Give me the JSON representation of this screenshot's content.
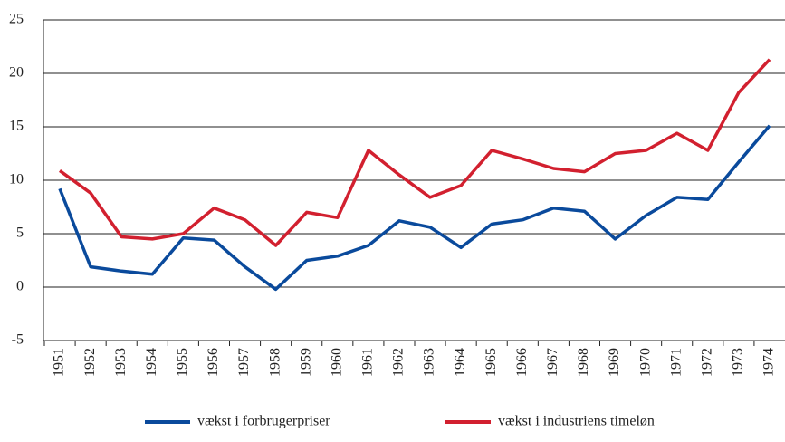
{
  "chart_data": {
    "type": "line",
    "categories": [
      "1951",
      "1952",
      "1953",
      "1954",
      "1955",
      "1956",
      "1957",
      "1958",
      "1959",
      "1960",
      "1961",
      "1962",
      "1963",
      "1964",
      "1965",
      "1966",
      "1967",
      "1968",
      "1969",
      "1970",
      "1971",
      "1972",
      "1973",
      "1974"
    ],
    "series": [
      {
        "name": "vækst i forbrugerpriser",
        "color": "#0a4a9c",
        "values": [
          9.2,
          1.9,
          1.5,
          1.2,
          4.6,
          4.4,
          1.9,
          -0.2,
          2.5,
          2.9,
          3.9,
          6.2,
          5.6,
          3.7,
          5.9,
          6.3,
          7.4,
          7.1,
          4.5,
          6.7,
          8.4,
          8.2,
          11.7,
          15.1
        ]
      },
      {
        "name": "vækst i industriens timeløn",
        "color": "#d2202f",
        "values": [
          10.9,
          8.8,
          4.7,
          4.5,
          5.0,
          7.4,
          6.3,
          3.9,
          7.0,
          6.5,
          12.8,
          10.5,
          8.4,
          9.5,
          12.8,
          12.0,
          11.1,
          10.8,
          12.5,
          12.8,
          14.4,
          12.8,
          18.2,
          21.3
        ]
      }
    ],
    "ylim": [
      -5,
      25
    ],
    "yticks": [
      -5,
      0,
      5,
      10,
      15,
      20,
      25
    ],
    "grid": true
  }
}
